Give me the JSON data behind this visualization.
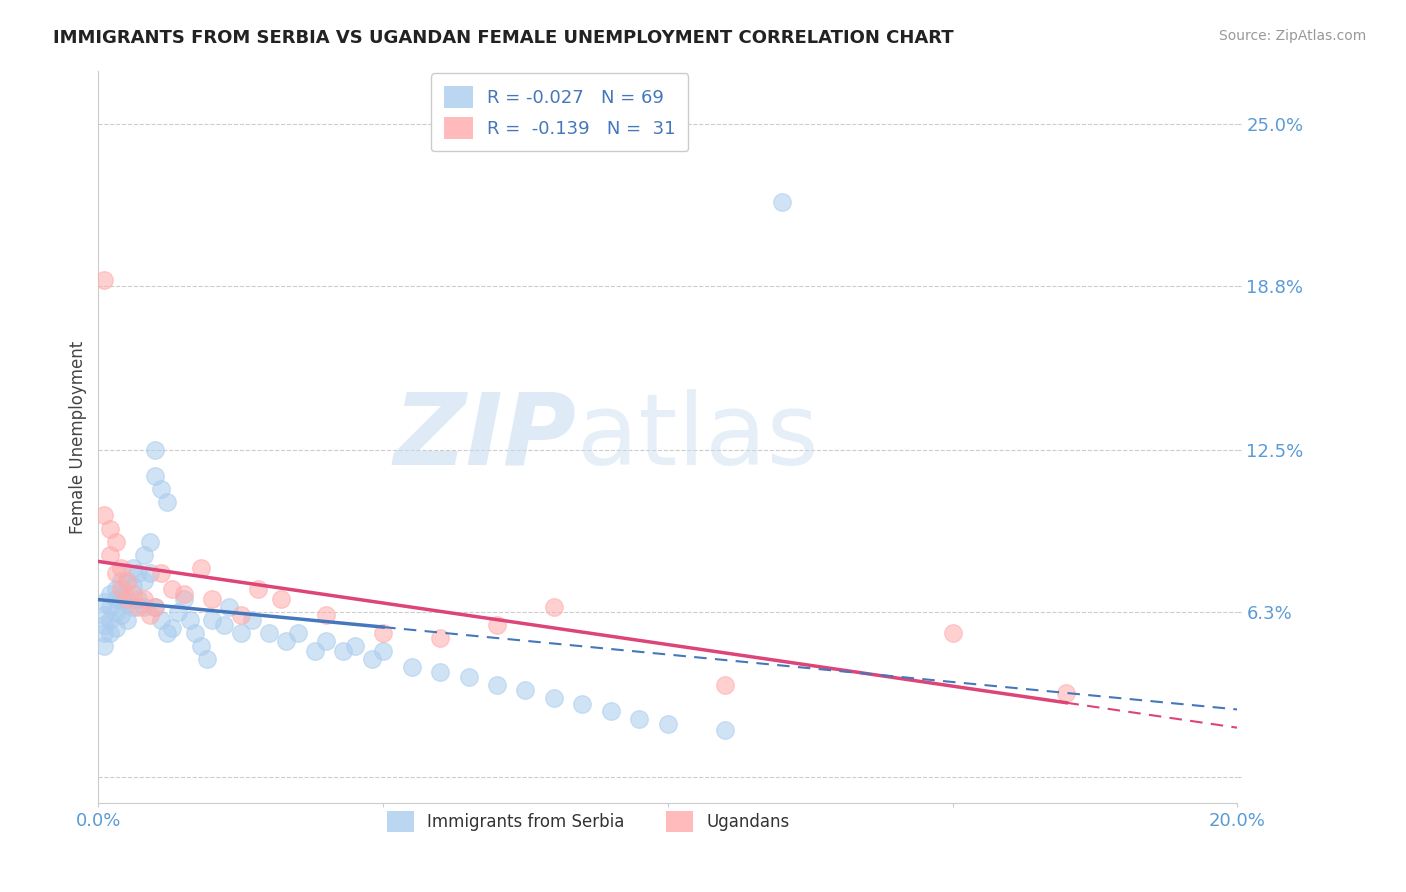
{
  "title": "IMMIGRANTS FROM SERBIA VS UGANDAN FEMALE UNEMPLOYMENT CORRELATION CHART",
  "source": "Source: ZipAtlas.com",
  "ylabel": "Female Unemployment",
  "xlim": [
    0.0,
    0.2
  ],
  "ylim": [
    -0.01,
    0.27
  ],
  "r_serbia": -0.027,
  "n_serbia": 69,
  "r_ugandan": -0.139,
  "n_ugandan": 31,
  "color_serbia": "#aaccee",
  "color_ugandan": "#ffaaaa",
  "line_color_serbia": "#4477bb",
  "line_color_ugandan": "#dd4477",
  "background_color": "#ffffff",
  "ytick_vals": [
    0.0,
    0.063,
    0.125,
    0.188,
    0.25
  ],
  "ytick_labels": [
    "",
    "6.3%",
    "12.5%",
    "18.8%",
    "25.0%"
  ],
  "xtick_vals": [
    0.0,
    0.05,
    0.1,
    0.15,
    0.2
  ],
  "xtick_labels": [
    "0.0%",
    "",
    "",
    "",
    "20.0%"
  ],
  "tick_color": "#5b9bd5",
  "serbia_x": [
    0.001,
    0.001,
    0.001,
    0.001,
    0.001,
    0.002,
    0.002,
    0.002,
    0.002,
    0.003,
    0.003,
    0.003,
    0.003,
    0.004,
    0.004,
    0.004,
    0.005,
    0.005,
    0.005,
    0.006,
    0.006,
    0.006,
    0.007,
    0.007,
    0.008,
    0.008,
    0.008,
    0.009,
    0.009,
    0.01,
    0.01,
    0.01,
    0.011,
    0.011,
    0.012,
    0.012,
    0.013,
    0.014,
    0.015,
    0.016,
    0.017,
    0.018,
    0.019,
    0.02,
    0.022,
    0.023,
    0.025,
    0.027,
    0.03,
    0.033,
    0.035,
    0.038,
    0.04,
    0.043,
    0.045,
    0.048,
    0.05,
    0.055,
    0.06,
    0.065,
    0.07,
    0.075,
    0.08,
    0.085,
    0.09,
    0.095,
    0.1,
    0.11,
    0.12
  ],
  "serbia_y": [
    0.067,
    0.062,
    0.058,
    0.055,
    0.05,
    0.07,
    0.065,
    0.06,
    0.055,
    0.072,
    0.068,
    0.063,
    0.057,
    0.075,
    0.068,
    0.062,
    0.074,
    0.066,
    0.06,
    0.08,
    0.073,
    0.065,
    0.078,
    0.068,
    0.085,
    0.075,
    0.065,
    0.09,
    0.078,
    0.125,
    0.115,
    0.065,
    0.11,
    0.06,
    0.105,
    0.055,
    0.057,
    0.063,
    0.068,
    0.06,
    0.055,
    0.05,
    0.045,
    0.06,
    0.058,
    0.065,
    0.055,
    0.06,
    0.055,
    0.052,
    0.055,
    0.048,
    0.052,
    0.048,
    0.05,
    0.045,
    0.048,
    0.042,
    0.04,
    0.038,
    0.035,
    0.033,
    0.03,
    0.028,
    0.025,
    0.022,
    0.02,
    0.018,
    0.22
  ],
  "ugandan_x": [
    0.001,
    0.001,
    0.002,
    0.002,
    0.003,
    0.003,
    0.004,
    0.004,
    0.005,
    0.005,
    0.006,
    0.007,
    0.008,
    0.009,
    0.01,
    0.011,
    0.013,
    0.015,
    0.018,
    0.02,
    0.025,
    0.028,
    0.032,
    0.04,
    0.05,
    0.06,
    0.07,
    0.08,
    0.11,
    0.15,
    0.17
  ],
  "ugandan_y": [
    0.19,
    0.1,
    0.095,
    0.085,
    0.09,
    0.078,
    0.08,
    0.072,
    0.075,
    0.068,
    0.07,
    0.065,
    0.068,
    0.062,
    0.065,
    0.078,
    0.072,
    0.07,
    0.08,
    0.068,
    0.062,
    0.072,
    0.068,
    0.062,
    0.055,
    0.053,
    0.058,
    0.065,
    0.035,
    0.055,
    0.032
  ]
}
